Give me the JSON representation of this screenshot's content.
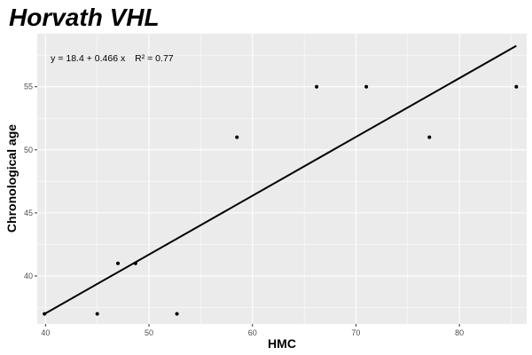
{
  "chart_data": {
    "type": "scatter",
    "title": "Horvath VHL",
    "subtitle": "",
    "xlabel": "HMC",
    "ylabel": "Chronological age",
    "xlim": [
      39.2,
      86.5
    ],
    "ylim": [
      36.2,
      59.2
    ],
    "x_ticks": [
      40,
      50,
      60,
      70,
      80
    ],
    "y_ticks": [
      40,
      45,
      50,
      55
    ],
    "grid": true,
    "legend": "none",
    "colors": {
      "panel": "#ebebeb",
      "grid": "#ffffff",
      "points": "#000000",
      "line": "#000000"
    },
    "annotation": {
      "equation": "y = 18.4 + 0.466 x",
      "r2_label": "R² = 0.77",
      "x": 40.5,
      "y": 57.3
    },
    "fit_line": {
      "intercept": 18.4,
      "slope": 0.466,
      "x_range": [
        39.9,
        85.5
      ]
    },
    "points": [
      {
        "x": 39.9,
        "y": 37
      },
      {
        "x": 45.0,
        "y": 37
      },
      {
        "x": 47.0,
        "y": 41
      },
      {
        "x": 48.7,
        "y": 41
      },
      {
        "x": 52.7,
        "y": 37
      },
      {
        "x": 58.5,
        "y": 51
      },
      {
        "x": 66.2,
        "y": 55
      },
      {
        "x": 71.0,
        "y": 55
      },
      {
        "x": 77.1,
        "y": 51
      },
      {
        "x": 85.5,
        "y": 55
      }
    ]
  }
}
